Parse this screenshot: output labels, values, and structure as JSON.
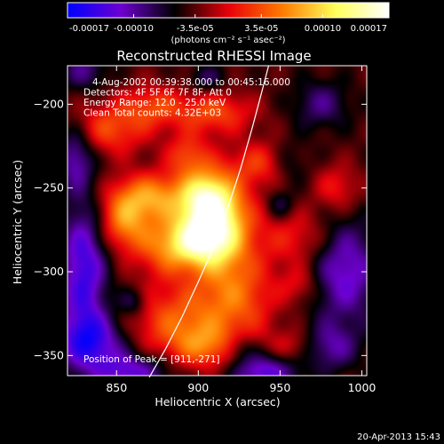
{
  "chart_data": {
    "type": "heatmap",
    "title": "Reconstructed RHESSI Image",
    "xlabel": "Heliocentric X (arcsec)",
    "ylabel": "Heliocentric Y (arcsec)",
    "xlim": [
      820,
      1003
    ],
    "ylim": [
      -362,
      -177
    ],
    "x_ticks": [
      "850",
      "900",
      "950",
      "1000"
    ],
    "x_tick_values": [
      850,
      900,
      950,
      1000
    ],
    "y_ticks": [
      "-200",
      "-250",
      "-300",
      "-350"
    ],
    "y_tick_values": [
      -200,
      -250,
      -300,
      -350
    ],
    "colorbar": {
      "range": [
        -0.00017,
        0.00017
      ],
      "tick_labels": [
        "-0.00017",
        "-0.00010",
        "-3.5e-05",
        "3.5e-05",
        "0.00010",
        "0.00017"
      ],
      "tick_values": [
        -0.00017,
        -0.0001,
        -3.5e-05,
        3.5e-05,
        0.0001,
        0.00017
      ],
      "unit": "(photons cm⁻² s⁻¹ asec⁻²)",
      "colormap": [
        "#0000ff",
        "#6e00d0",
        "#000000",
        "#e8000a",
        "#ff7a00",
        "#ffff5a",
        "#ffffff"
      ]
    },
    "annotations": [
      "4-Aug-2002 00:39:38.000 to 00:45:16.000",
      "Detectors: 4F 5F 6F 7F 8F, Att 0",
      "Energy Range: 12.0 - 25.0 keV",
      "Clean     Total counts: 4.32E+03"
    ],
    "peak_label": "Position of Peak = [911,-271]",
    "peak": [
      911,
      -271
    ],
    "limb_curve": [
      [
        870,
        -363
      ],
      [
        880,
        -346
      ],
      [
        890,
        -327
      ],
      [
        900,
        -306
      ],
      [
        910,
        -284
      ],
      [
        918,
        -262
      ],
      [
        926,
        -238
      ],
      [
        933,
        -214
      ],
      [
        939,
        -192
      ],
      [
        943,
        -177
      ]
    ],
    "sources": [
      {
        "x": 911,
        "y": -271,
        "sx": 15,
        "sy": 20,
        "amp": 0.00017
      },
      {
        "x": 900,
        "y": -281,
        "sx": 12,
        "sy": 10,
        "amp": 9e-05
      },
      {
        "x": 905,
        "y": -256,
        "sx": 10,
        "sy": 12,
        "amp": 8e-05
      },
      {
        "x": 872,
        "y": -255,
        "sx": 18,
        "sy": 10,
        "amp": 0.0001
      },
      {
        "x": 855,
        "y": -271,
        "sx": 11,
        "sy": 12,
        "amp": 9e-05
      },
      {
        "x": 880,
        "y": -285,
        "sx": 13,
        "sy": 12,
        "amp": 8e-05
      },
      {
        "x": 888,
        "y": -330,
        "sx": 22,
        "sy": 16,
        "amp": 8e-05
      },
      {
        "x": 925,
        "y": -315,
        "sx": 16,
        "sy": 18,
        "amp": 7e-05
      },
      {
        "x": 845,
        "y": -215,
        "sx": 17,
        "sy": 11,
        "amp": 7e-05
      },
      {
        "x": 872,
        "y": -201,
        "sx": 14,
        "sy": 9,
        "amp": 6e-05
      },
      {
        "x": 910,
        "y": -205,
        "sx": 17,
        "sy": 9,
        "amp": 7e-05
      },
      {
        "x": 893,
        "y": -230,
        "sx": 9,
        "sy": 9,
        "amp": 6e-05
      },
      {
        "x": 940,
        "y": -235,
        "sx": 13,
        "sy": 9,
        "amp": 6e-05
      },
      {
        "x": 960,
        "y": -280,
        "sx": 15,
        "sy": 12,
        "amp": 5e-05
      },
      {
        "x": 985,
        "y": -250,
        "sx": 10,
        "sy": 10,
        "amp": 5e-05
      },
      {
        "x": 905,
        "y": -345,
        "sx": 14,
        "sy": 9,
        "amp": 6e-05
      },
      {
        "x": 958,
        "y": -345,
        "sx": 11,
        "sy": 8,
        "amp": 4e-05
      },
      {
        "x": 962,
        "y": -308,
        "sx": 9,
        "sy": 8,
        "amp": 4e-05
      },
      {
        "x": 975,
        "y": -200,
        "sx": 12,
        "sy": 10,
        "amp": -5e-05
      },
      {
        "x": 990,
        "y": -300,
        "sx": 15,
        "sy": 22,
        "amp": -8e-05
      },
      {
        "x": 955,
        "y": -235,
        "sx": 9,
        "sy": 9,
        "amp": -4e-05
      },
      {
        "x": 830,
        "y": -300,
        "sx": 10,
        "sy": 30,
        "amp": -0.0001
      },
      {
        "x": 835,
        "y": -342,
        "sx": 15,
        "sy": 12,
        "amp": -9e-05
      },
      {
        "x": 860,
        "y": -360,
        "sx": 16,
        "sy": 8,
        "amp": -8e-05
      },
      {
        "x": 940,
        "y": -360,
        "sx": 14,
        "sy": 8,
        "amp": -9e-05
      },
      {
        "x": 980,
        "y": -345,
        "sx": 12,
        "sy": 10,
        "amp": -6e-05
      },
      {
        "x": 825,
        "y": -230,
        "sx": 8,
        "sy": 14,
        "amp": -7e-05
      },
      {
        "x": 830,
        "y": -180,
        "sx": 10,
        "sy": 8,
        "amp": -5e-05
      },
      {
        "x": 905,
        "y": -185,
        "sx": 8,
        "sy": 6,
        "amp": -4e-05
      },
      {
        "x": 860,
        "y": -318,
        "sx": 6,
        "sy": 6,
        "amp": -5e-05
      },
      {
        "x": 950,
        "y": -260,
        "sx": 6,
        "sy": 6,
        "amp": -4e-05
      },
      {
        "x": 925,
        "y": -345,
        "sx": 7,
        "sy": 6,
        "amp": -4e-05
      }
    ]
  },
  "footer_timestamp": "20-Apr-2013 15:43"
}
